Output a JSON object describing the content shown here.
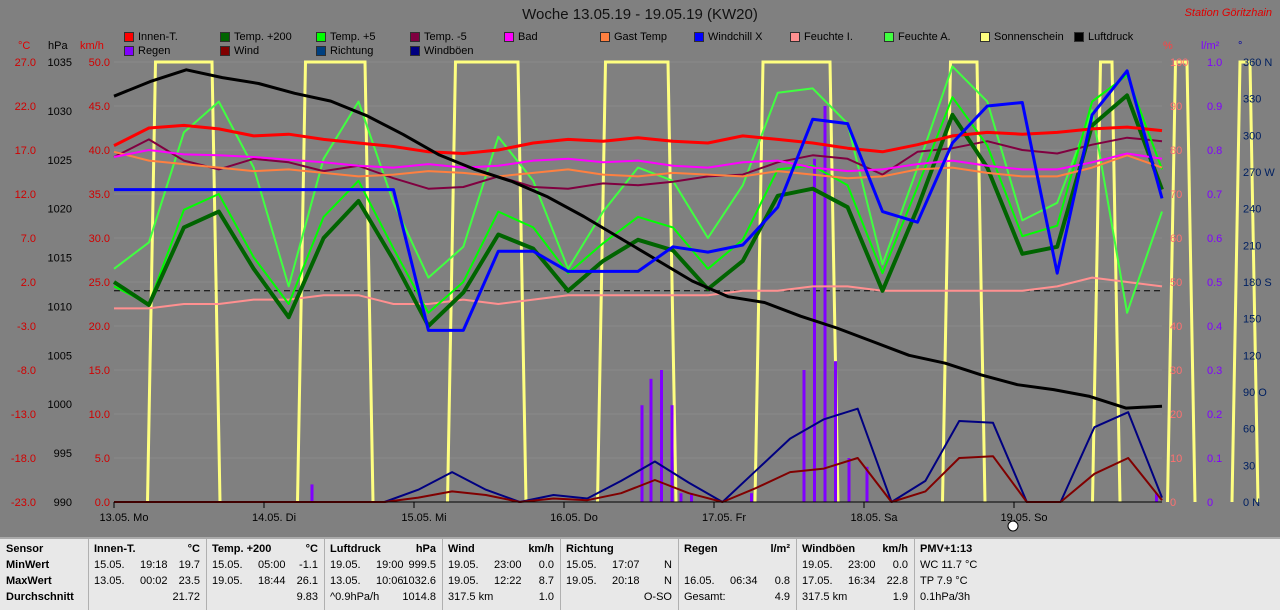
{
  "header": {
    "title": "Woche 13.05.19 - 19.05.19 (KW20)",
    "station": "Station Göritzhain"
  },
  "legend": [
    {
      "label": "Innen-T.",
      "color": "#ff0000"
    },
    {
      "label": "Temp. +200",
      "color": "#006400"
    },
    {
      "label": "Temp. +5",
      "color": "#00ff00"
    },
    {
      "label": "Temp. -5",
      "color": "#800040"
    },
    {
      "label": "Bad",
      "color": "#ff00ff"
    },
    {
      "label": "Gast Temp",
      "color": "#ff8040"
    },
    {
      "label": "Windchill X",
      "color": "#0000ff"
    },
    {
      "label": "Feuchte I.",
      "color": "#ff9090"
    },
    {
      "label": "Feuchte A.",
      "color": "#40ff40"
    },
    {
      "label": "Sonnenschein",
      "color": "#ffff80"
    },
    {
      "label": "Luftdruck",
      "color": "#000000"
    },
    {
      "label": "Regen",
      "color": "#8000ff"
    },
    {
      "label": "Wind",
      "color": "#800000"
    },
    {
      "label": "Richtung",
      "color": "#004080"
    },
    {
      "label": "Windböen",
      "color": "#000080"
    }
  ],
  "units": {
    "temp": "°C",
    "press": "hPa",
    "wind": "km/h",
    "hum": "%",
    "rain": "l/m²",
    "dir": "°"
  },
  "chart_data": {
    "type": "line",
    "x_labels": [
      "13.05. Mo",
      "14.05. Di",
      "15.05. Mi",
      "16.05. Do",
      "17.05. Fr",
      "18.05. Sa",
      "19.05. So"
    ],
    "axes": {
      "temp_ticks": [
        "27.0",
        "22.0",
        "17.0",
        "12.0",
        "7.0",
        "2.0",
        "-3.0",
        "-8.0",
        "-13.0",
        "-18.0",
        "-23.0"
      ],
      "press_ticks": [
        "1035",
        "1030",
        "1025",
        "1020",
        "1015",
        "1010",
        "1005",
        "1000",
        "995",
        "990"
      ],
      "wind_ticks": [
        "50.0",
        "45.0",
        "40.0",
        "35.0",
        "30.0",
        "25.0",
        "20.0",
        "15.0",
        "10.0",
        "5.0",
        "0.0"
      ],
      "hum_ticks": [
        "100",
        "90",
        "80",
        "70",
        "60",
        "50",
        "40",
        "30",
        "20",
        "10",
        "0"
      ],
      "rain_ticks": [
        "1.0",
        "0.9",
        "0.8",
        "0.7",
        "0.6",
        "0.5",
        "0.4",
        "0.3",
        "0.2",
        "0.1",
        "0"
      ],
      "dir_ticks": [
        "360 N",
        "330",
        "300",
        "270 W",
        "240",
        "210",
        "180 S",
        "150",
        "120",
        "90 O",
        "60",
        "30",
        "0 N"
      ],
      "temp_range": [
        -23,
        27
      ],
      "press_range": [
        990,
        1035
      ],
      "wind_range": [
        0,
        50
      ],
      "hum_range": [
        0,
        100
      ],
      "rain_range": [
        0,
        1
      ],
      "dir_range": [
        0,
        360
      ]
    },
    "reference_line_wind": 24,
    "series": {
      "luftdruck": [
        1031.5,
        1033.0,
        1034.2,
        1033.4,
        1032.8,
        1031.8,
        1031.0,
        1029.5,
        1027.6,
        1025.5,
        1024.0,
        1022.8,
        1021.2,
        1019.2,
        1017.0,
        1014.8,
        1012.6,
        1011.0,
        1010.4,
        1009.0,
        1007.8,
        1006.4,
        1005.0,
        1004.2,
        1003.0,
        1002.0,
        1001.5,
        1000.8,
        999.6,
        999.8
      ],
      "innen_t": [
        40.5,
        42.5,
        42.8,
        42.4,
        41.6,
        41.8,
        41.2,
        40.8,
        40.4,
        39.8,
        39.6,
        40.0,
        40.8,
        41.2,
        41.0,
        41.4,
        41.0,
        40.8,
        41.6,
        41.2,
        40.8,
        40.2,
        39.8,
        40.6,
        41.6,
        42.0,
        41.8,
        42.0,
        42.4,
        42.6,
        42.2
      ],
      "bad": [
        39.2,
        40.0,
        39.5,
        39.4,
        39.2,
        38.9,
        38.6,
        38.2,
        38.0,
        38.4,
        38.0,
        38.2,
        38.8,
        39.0,
        38.6,
        38.8,
        38.2,
        38.0,
        38.6,
        38.8,
        38.0,
        37.6,
        37.8,
        38.4,
        38.8,
        38.2,
        37.8,
        37.8,
        38.6,
        39.6,
        39.0
      ],
      "gast_temp": [
        39.8,
        38.8,
        38.4,
        38.0,
        37.6,
        37.8,
        37.4,
        37.0,
        37.2,
        37.6,
        37.4,
        37.0,
        37.4,
        37.8,
        37.2,
        37.0,
        37.4,
        37.2,
        37.0,
        37.6,
        37.2,
        36.8,
        37.0,
        37.8,
        38.0,
        37.4,
        37.0,
        37.0,
        38.0,
        39.4,
        38.0
      ],
      "temp_200": [
        2.0,
        -0.6,
        8.2,
        10.0,
        3.5,
        -2.0,
        7.0,
        11.2,
        4.5,
        -3.0,
        0.8,
        7.4,
        5.8,
        1.0,
        4.4,
        6.8,
        5.6,
        1.2,
        4.4,
        11.8,
        12.6,
        10.5,
        1.0,
        10.4,
        21.0,
        15.0,
        5.2,
        6.0,
        19.8,
        23.2,
        12.5
      ],
      "temp_5": [
        1.5,
        -0.5,
        10.2,
        12.0,
        4.8,
        -0.5,
        9.4,
        13.5,
        5.8,
        -1.5,
        2.0,
        10.0,
        8.2,
        3.0,
        6.4,
        9.4,
        8.2,
        3.5,
        6.8,
        14.8,
        15.2,
        13.0,
        3.0,
        12.8,
        23.0,
        17.5,
        7.2,
        8.4,
        22.5,
        25.5,
        14.8
      ],
      "temp_m5": [
        16.2,
        18.2,
        15.8,
        14.8,
        16.0,
        15.6,
        14.6,
        15.2,
        13.8,
        12.6,
        12.8,
        14.0,
        12.8,
        12.6,
        13.2,
        13.0,
        13.4,
        14.0,
        14.2,
        15.6,
        16.4,
        16.0,
        14.2,
        16.8,
        17.2,
        18.0,
        17.0,
        16.6,
        17.6,
        18.4,
        18.0
      ],
      "windchill": [
        12.5,
        12.5,
        12.5,
        12.5,
        12.5,
        12.5,
        12.5,
        12.5,
        12.5,
        -3.5,
        -3.5,
        5.5,
        5.5,
        3.2,
        3.2,
        3.2,
        6.0,
        5.4,
        6.2,
        10.5,
        20.5,
        20.0,
        10.0,
        8.8,
        17.8,
        22.0,
        22.4,
        3.0,
        21.0,
        26.0,
        11.5
      ],
      "feuchte_a": [
        53,
        59,
        84,
        91,
        76,
        49,
        78,
        91,
        68,
        51,
        58,
        83,
        73,
        53,
        66,
        76,
        73,
        60,
        72,
        93,
        94,
        86,
        54,
        76,
        99,
        91,
        64,
        68,
        89,
        43,
        66
      ],
      "feuchte_i": [
        44,
        44,
        45,
        45,
        46,
        46,
        47,
        47,
        45,
        45,
        46,
        45,
        46,
        47,
        47,
        47,
        47,
        47,
        48,
        48,
        49,
        49,
        48,
        48,
        48,
        48,
        48,
        49,
        51,
        50,
        49
      ],
      "wind": [
        0,
        0,
        0,
        0,
        0,
        0,
        0,
        0,
        0,
        0.5,
        1.2,
        0.8,
        0,
        0.4,
        0.2,
        1.0,
        2.5,
        1.0,
        0,
        1.6,
        3.4,
        3.8,
        5.0,
        0,
        1.2,
        5.0,
        5.2,
        0,
        0,
        3.2,
        5.0,
        0.2
      ],
      "windboeen": [
        0,
        0,
        0,
        0,
        0,
        0,
        0,
        0,
        0,
        1.4,
        3.4,
        1.4,
        0,
        0.8,
        0.4,
        2.4,
        4.6,
        2.2,
        0,
        3.6,
        7.2,
        9.4,
        10.6,
        0,
        2.4,
        9.2,
        9.0,
        0,
        0,
        8.5,
        10.2,
        0.5
      ],
      "regen": [
        {
          "x": 1.32,
          "v": 0.04
        },
        {
          "x": 3.52,
          "v": 0.22
        },
        {
          "x": 3.58,
          "v": 0.28
        },
        {
          "x": 3.65,
          "v": 0.3
        },
        {
          "x": 3.72,
          "v": 0.22
        },
        {
          "x": 3.78,
          "v": 0.02
        },
        {
          "x": 3.85,
          "v": 0.02
        },
        {
          "x": 4.25,
          "v": 0.02
        },
        {
          "x": 4.6,
          "v": 0.3
        },
        {
          "x": 4.67,
          "v": 0.78
        },
        {
          "x": 4.74,
          "v": 0.9
        },
        {
          "x": 4.81,
          "v": 0.32
        },
        {
          "x": 4.9,
          "v": 0.1
        },
        {
          "x": 5.02,
          "v": 0.08
        },
        {
          "x": 6.95,
          "v": 0.02
        }
      ],
      "sonnenschein": [
        [
          0.25,
          0.68
        ],
        [
          1.25,
          1.7
        ],
        [
          2.25,
          2.72
        ],
        [
          3.25,
          3.72
        ],
        [
          4.3,
          4.8
        ],
        [
          5.55,
          5.78
        ],
        [
          6.55,
          6.68
        ],
        [
          7.05,
          7.18
        ],
        [
          7.48,
          7.6
        ]
      ]
    }
  },
  "stats": [
    {
      "title": "Sensor",
      "unit": "",
      "rows": [
        [
          "MinWert",
          "",
          ""
        ],
        [
          "MaxWert",
          "",
          ""
        ],
        [
          "Durchschnitt",
          "",
          ""
        ]
      ]
    },
    {
      "title": "Innen-T.",
      "unit": "°C",
      "rows": [
        [
          "15.05.",
          "19:18",
          "19.7"
        ],
        [
          "13.05.",
          "00:02",
          "23.5"
        ],
        [
          "",
          "",
          "21.72"
        ]
      ]
    },
    {
      "title": "Temp. +200",
      "unit": "°C",
      "rows": [
        [
          "15.05.",
          "05:00",
          "-1.1"
        ],
        [
          "19.05.",
          "18:44",
          "26.1"
        ],
        [
          "",
          "",
          "9.83"
        ]
      ]
    },
    {
      "title": "Luftdruck",
      "unit": "hPa",
      "rows": [
        [
          "19.05.",
          "19:00",
          "999.5"
        ],
        [
          "13.05.",
          "10:06",
          "1032.6"
        ],
        [
          "^0.9hPa/h",
          "",
          "1014.8"
        ]
      ]
    },
    {
      "title": "Wind",
      "unit": "km/h",
      "rows": [
        [
          "19.05.",
          "23:00",
          "0.0"
        ],
        [
          "19.05.",
          "12:22",
          "8.7"
        ],
        [
          "317.5 km",
          "",
          "1.0"
        ]
      ]
    },
    {
      "title": "Richtung",
      "unit": "",
      "rows": [
        [
          "15.05.",
          "17:07",
          "N"
        ],
        [
          "19.05.",
          "20:18",
          "N"
        ],
        [
          "",
          "",
          "O-SO"
        ]
      ]
    },
    {
      "title": "Regen",
      "unit": "l/m²",
      "rows": [
        [
          "",
          "",
          ""
        ],
        [
          "16.05.",
          "06:34",
          "0.8"
        ],
        [
          "Gesamt:",
          "",
          "4.9"
        ]
      ]
    },
    {
      "title": "Windböen",
      "unit": "km/h",
      "rows": [
        [
          "19.05.",
          "23:00",
          "0.0"
        ],
        [
          "17.05.",
          "16:34",
          "22.8"
        ],
        [
          "317.5 km",
          "",
          "1.9"
        ]
      ]
    },
    {
      "title": "PMV+1:13",
      "unit": "",
      "rows": [
        [
          "WC 11.7 °C",
          "",
          ""
        ],
        [
          "TP 7.9 °C",
          "",
          ""
        ],
        [
          "0.1hPa/3h",
          "",
          ""
        ]
      ]
    }
  ]
}
